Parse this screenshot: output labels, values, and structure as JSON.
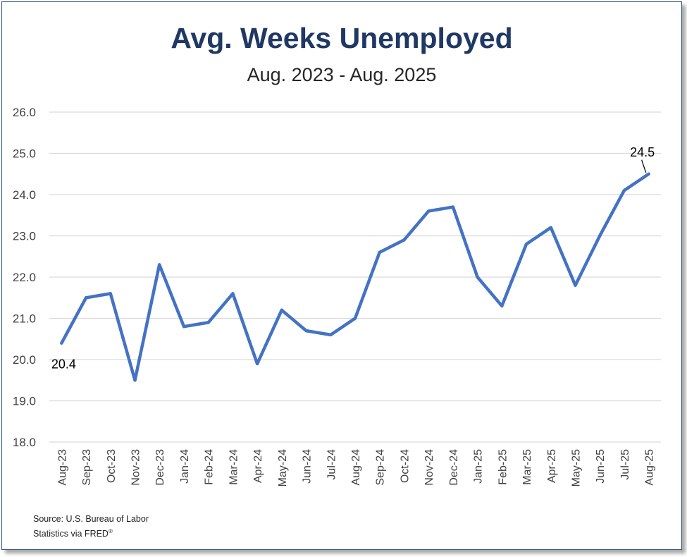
{
  "chart_data": {
    "type": "line",
    "title": "Avg. Weeks Unemployed",
    "subtitle": "Aug. 2023 - Aug. 2025",
    "categories": [
      "Aug-23",
      "Sep-23",
      "Oct-23",
      "Nov-23",
      "Dec-23",
      "Jan-24",
      "Feb-24",
      "Mar-24",
      "Apr-24",
      "May-24",
      "Jun-24",
      "Jul-24",
      "Aug-24",
      "Sep-24",
      "Oct-24",
      "Nov-24",
      "Dec-24",
      "Jan-25",
      "Feb-25",
      "Mar-25",
      "Apr-25",
      "May-25",
      "Jun-25",
      "Jul-25",
      "Aug-25"
    ],
    "series": [
      {
        "values": [
          20.4,
          21.5,
          21.6,
          19.5,
          22.3,
          20.8,
          20.9,
          21.6,
          19.9,
          21.2,
          20.7,
          20.6,
          21.0,
          22.6,
          22.9,
          23.6,
          23.7,
          22.0,
          21.3,
          22.8,
          23.2,
          21.8,
          23.0,
          24.1,
          24.5
        ],
        "color": "#4472c4"
      }
    ],
    "ylim": [
      18.0,
      26.0
    ],
    "yticks": [
      "18.0",
      "19.0",
      "20.0",
      "21.0",
      "22.0",
      "23.0",
      "24.0",
      "25.0",
      "26.0"
    ],
    "grid": true,
    "legend": "none",
    "annotations": [
      {
        "label": "20.4",
        "category": "Aug-23"
      },
      {
        "label": "24.5",
        "category": "Aug-25"
      }
    ]
  },
  "source": {
    "line1": "Source: U.S. Bureau of Labor",
    "line2": "Statistics via FRED",
    "mark": "®"
  }
}
